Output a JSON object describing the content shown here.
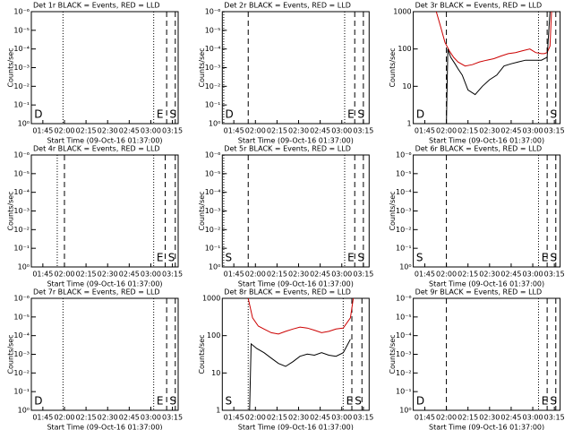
{
  "chart_data": [
    {
      "type": "line",
      "title": "Det 1r BLACK = Events, RED = LLD",
      "xlabel": "Start Time (09-Oct-16 01:37:00)",
      "ylabel": "Counts/sec",
      "ylog": true,
      "xlim": [
        97,
        199
      ],
      "ylim": [
        1,
        1e-06
      ],
      "xticks": [
        {
          "value": 105,
          "label": "01:45"
        },
        {
          "value": 120,
          "label": "02:00"
        },
        {
          "value": 135,
          "label": "02:15"
        },
        {
          "value": 150,
          "label": "02:30"
        },
        {
          "value": 165,
          "label": "02:45"
        },
        {
          "value": 180,
          "label": "03:00"
        },
        {
          "value": 195,
          "label": "03:15"
        }
      ],
      "yticks": [
        {
          "value": 1,
          "label": "10⁰"
        },
        {
          "value": 0.1,
          "label": "10⁻¹"
        },
        {
          "value": 0.01,
          "label": "10⁻²"
        },
        {
          "value": 0.001,
          "label": "10⁻³"
        },
        {
          "value": 0.0001,
          "label": "10⁻⁴"
        },
        {
          "value": 1e-05,
          "label": "10⁻⁵"
        },
        {
          "value": 1e-06,
          "label": "10⁻⁶"
        }
      ],
      "series": [],
      "vlines": [
        {
          "x": 119,
          "style": "dotted"
        },
        {
          "x": 182,
          "style": "dotted"
        },
        {
          "x": 191,
          "style": "dashed"
        },
        {
          "x": 197,
          "style": "dashed"
        }
      ],
      "annotations": [
        {
          "text": "D",
          "x": 99
        },
        {
          "text": "E",
          "x": 184
        },
        {
          "text": "S",
          "x": 193
        }
      ]
    },
    {
      "type": "line",
      "title": "Det 2r BLACK = Events, RED = LLD",
      "xlabel": "Start Time (09-Oct-16 01:37:00)",
      "ylabel": "Counts/sec",
      "ylog": true,
      "xlim": [
        97,
        199
      ],
      "ylim": [
        1,
        1e-06
      ],
      "xticks": [
        {
          "value": 105,
          "label": "01:45"
        },
        {
          "value": 120,
          "label": "02:00"
        },
        {
          "value": 135,
          "label": "02:15"
        },
        {
          "value": 150,
          "label": "02:30"
        },
        {
          "value": 165,
          "label": "02:45"
        },
        {
          "value": 180,
          "label": "03:00"
        },
        {
          "value": 195,
          "label": "03:15"
        }
      ],
      "yticks": [
        {
          "value": 1,
          "label": "10⁰"
        },
        {
          "value": 0.1,
          "label": "10⁻¹"
        },
        {
          "value": 0.01,
          "label": "10⁻²"
        },
        {
          "value": 0.001,
          "label": "10⁻³"
        },
        {
          "value": 0.0001,
          "label": "10⁻⁴"
        },
        {
          "value": 1e-05,
          "label": "10⁻⁵"
        },
        {
          "value": 1e-06,
          "label": "10⁻⁶"
        }
      ],
      "series": [],
      "vlines": [
        {
          "x": 98,
          "style": "dotted"
        },
        {
          "x": 115,
          "style": "dashed"
        },
        {
          "x": 182,
          "style": "dotted"
        },
        {
          "x": 189,
          "style": "dashed"
        },
        {
          "x": 195,
          "style": "dashed"
        }
      ],
      "annotations": [
        {
          "text": "D",
          "x": 99
        },
        {
          "text": "E",
          "x": 184
        },
        {
          "text": "S",
          "x": 191
        }
      ]
    },
    {
      "type": "line",
      "title": "Det 3r BLACK = Events, RED = LLD",
      "xlabel": "Start Time (09-Oct-16 01:37:00)",
      "ylabel": "Counts/sec",
      "ylog": true,
      "xlim": [
        97,
        199
      ],
      "ylim": [
        1,
        1000
      ],
      "xticks": [
        {
          "value": 105,
          "label": "01:45"
        },
        {
          "value": 120,
          "label": "02:00"
        },
        {
          "value": 135,
          "label": "02:15"
        },
        {
          "value": 150,
          "label": "02:30"
        },
        {
          "value": 165,
          "label": "02:45"
        },
        {
          "value": 180,
          "label": "03:00"
        },
        {
          "value": 195,
          "label": "03:15"
        }
      ],
      "yticks": [
        1,
        10,
        100,
        1000
      ],
      "series": [
        {
          "color": "#cc0000",
          "values": [
            1000,
            400,
            150,
            90,
            60,
            45,
            35,
            38,
            45,
            50,
            55,
            65,
            75,
            80,
            90,
            100,
            80,
            75,
            75,
            80,
            120,
            1000
          ],
          "x": [
            113,
            116,
            119,
            122,
            125,
            128,
            133,
            138,
            143,
            148,
            153,
            158,
            163,
            168,
            173,
            178,
            182,
            186,
            188,
            190,
            192,
            193
          ]
        },
        {
          "color": "#000000",
          "values": [
            1,
            100,
            60,
            40,
            30,
            20,
            8,
            6,
            10,
            15,
            20,
            35,
            40,
            45,
            50,
            50,
            50,
            60,
            1000
          ],
          "x": [
            120,
            121,
            123,
            126,
            128,
            131,
            135,
            140,
            145,
            150,
            155,
            160,
            165,
            170,
            175,
            180,
            186,
            190,
            192
          ]
        }
      ],
      "vlines": [
        {
          "x": 120,
          "style": "dashed"
        },
        {
          "x": 184,
          "style": "dotted"
        },
        {
          "x": 190,
          "style": "dashed"
        },
        {
          "x": 196,
          "style": "dashed"
        }
      ],
      "annotations": [
        {
          "text": "D",
          "x": 99
        },
        {
          "text": "S",
          "x": 192
        }
      ]
    },
    {
      "type": "line",
      "title": "Det 4r BLACK = Events, RED = LLD",
      "xlabel": "Start Time (09-Oct-16 01:37:00)",
      "ylabel": "Counts/sec",
      "ylog": true,
      "xlim": [
        97,
        199
      ],
      "ylim": [
        1,
        1e-06
      ],
      "xticks": [
        {
          "value": 105,
          "label": "01:45"
        },
        {
          "value": 120,
          "label": "02:00"
        },
        {
          "value": 135,
          "label": "02:15"
        },
        {
          "value": 150,
          "label": "02:30"
        },
        {
          "value": 165,
          "label": "02:45"
        },
        {
          "value": 180,
          "label": "03:00"
        },
        {
          "value": 195,
          "label": "03:15"
        }
      ],
      "yticks": [
        {
          "value": 1,
          "label": "10⁰"
        },
        {
          "value": 0.1,
          "label": "10⁻¹"
        },
        {
          "value": 0.01,
          "label": "10⁻²"
        },
        {
          "value": 0.001,
          "label": "10⁻³"
        },
        {
          "value": 0.0001,
          "label": "10⁻⁴"
        },
        {
          "value": 1e-05,
          "label": "10⁻⁵"
        },
        {
          "value": 1e-06,
          "label": "10⁻⁶"
        }
      ],
      "series": [],
      "vlines": [
        {
          "x": 115,
          "style": "dotted"
        },
        {
          "x": 120,
          "style": "dashed"
        },
        {
          "x": 182,
          "style": "dotted"
        },
        {
          "x": 190,
          "style": "dashed"
        },
        {
          "x": 197,
          "style": "dashed"
        }
      ],
      "annotations": [
        {
          "text": "E",
          "x": 184
        },
        {
          "text": "S",
          "x": 192
        }
      ]
    },
    {
      "type": "line",
      "title": "Det 5r BLACK = Events, RED = LLD",
      "xlabel": "Start Time (09-Oct-16 01:37:00)",
      "ylabel": "Counts/sec",
      "ylog": true,
      "xlim": [
        97,
        199
      ],
      "ylim": [
        1,
        1e-06
      ],
      "xticks": [
        {
          "value": 105,
          "label": "01:45"
        },
        {
          "value": 120,
          "label": "02:00"
        },
        {
          "value": 135,
          "label": "02:15"
        },
        {
          "value": 150,
          "label": "02:30"
        },
        {
          "value": 165,
          "label": "02:45"
        },
        {
          "value": 180,
          "label": "03:00"
        },
        {
          "value": 195,
          "label": "03:15"
        }
      ],
      "yticks": [
        {
          "value": 1,
          "label": "10⁰"
        },
        {
          "value": 0.1,
          "label": "10⁻¹"
        },
        {
          "value": 0.01,
          "label": "10⁻²"
        },
        {
          "value": 0.001,
          "label": "10⁻³"
        },
        {
          "value": 0.0001,
          "label": "10⁻⁴"
        },
        {
          "value": 1e-05,
          "label": "10⁻⁵"
        },
        {
          "value": 1e-06,
          "label": "10⁻⁶"
        }
      ],
      "series": [],
      "vlines": [
        {
          "x": 98,
          "style": "dotted"
        },
        {
          "x": 115,
          "style": "dashed"
        },
        {
          "x": 182,
          "style": "dotted"
        },
        {
          "x": 189,
          "style": "dashed"
        },
        {
          "x": 195,
          "style": "dashed"
        }
      ],
      "annotations": [
        {
          "text": "S",
          "x": 99
        },
        {
          "text": "E",
          "x": 184
        },
        {
          "text": "S",
          "x": 191
        }
      ]
    },
    {
      "type": "line",
      "title": "Det 6r BLACK = Events, RED = LLD",
      "xlabel": "Start Time (09-Oct-16 01:37:00)",
      "ylabel": "Counts/sec",
      "ylog": true,
      "xlim": [
        97,
        199
      ],
      "ylim": [
        1,
        1e-06
      ],
      "xticks": [
        {
          "value": 105,
          "label": "01:45"
        },
        {
          "value": 120,
          "label": "02:00"
        },
        {
          "value": 135,
          "label": "02:15"
        },
        {
          "value": 150,
          "label": "02:30"
        },
        {
          "value": 165,
          "label": "02:45"
        },
        {
          "value": 180,
          "label": "03:00"
        },
        {
          "value": 195,
          "label": "03:15"
        }
      ],
      "yticks": [
        {
          "value": 1,
          "label": "10⁰"
        },
        {
          "value": 0.1,
          "label": "10⁻¹"
        },
        {
          "value": 0.01,
          "label": "10⁻²"
        },
        {
          "value": 0.001,
          "label": "10⁻³"
        },
        {
          "value": 0.0001,
          "label": "10⁻⁴"
        },
        {
          "value": 1e-05,
          "label": "10⁻⁵"
        },
        {
          "value": 1e-06,
          "label": "10⁻⁶"
        }
      ],
      "series": [],
      "vlines": [
        {
          "x": 120,
          "style": "dashed"
        },
        {
          "x": 184,
          "style": "dotted"
        },
        {
          "x": 190,
          "style": "dashed"
        },
        {
          "x": 196,
          "style": "dashed"
        }
      ],
      "annotations": [
        {
          "text": "S",
          "x": 99
        },
        {
          "text": "E",
          "x": 186
        },
        {
          "text": "S",
          "x": 192
        }
      ]
    },
    {
      "type": "line",
      "title": "Det 7r BLACK = Events, RED = LLD",
      "xlabel": "Start Time (09-Oct-16 01:37:00)",
      "ylabel": "Counts/sec",
      "ylog": true,
      "xlim": [
        97,
        199
      ],
      "ylim": [
        1,
        1e-06
      ],
      "xticks": [
        {
          "value": 105,
          "label": "01:45"
        },
        {
          "value": 120,
          "label": "02:00"
        },
        {
          "value": 135,
          "label": "02:15"
        },
        {
          "value": 150,
          "label": "02:30"
        },
        {
          "value": 165,
          "label": "02:45"
        },
        {
          "value": 180,
          "label": "03:00"
        },
        {
          "value": 195,
          "label": "03:15"
        }
      ],
      "yticks": [
        {
          "value": 1,
          "label": "10⁰"
        },
        {
          "value": 0.1,
          "label": "10⁻¹"
        },
        {
          "value": 0.01,
          "label": "10⁻²"
        },
        {
          "value": 0.001,
          "label": "10⁻³"
        },
        {
          "value": 0.0001,
          "label": "10⁻⁴"
        },
        {
          "value": 1e-05,
          "label": "10⁻⁵"
        },
        {
          "value": 1e-06,
          "label": "10⁻⁶"
        }
      ],
      "series": [],
      "vlines": [
        {
          "x": 119,
          "style": "dotted"
        },
        {
          "x": 182,
          "style": "dotted"
        },
        {
          "x": 191,
          "style": "dashed"
        },
        {
          "x": 197,
          "style": "dashed"
        }
      ],
      "annotations": [
        {
          "text": "D",
          "x": 99
        },
        {
          "text": "E",
          "x": 184
        },
        {
          "text": "S",
          "x": 193
        }
      ]
    },
    {
      "type": "line",
      "title": "Det 8r BLACK = Events, RED = LLD",
      "xlabel": "Start Time (09-Oct-16 01:37:00)",
      "ylabel": "Counts/sec",
      "ylog": true,
      "xlim": [
        97,
        199
      ],
      "ylim": [
        1,
        1000
      ],
      "xticks": [
        {
          "value": 105,
          "label": "01:45"
        },
        {
          "value": 120,
          "label": "02:00"
        },
        {
          "value": 135,
          "label": "02:15"
        },
        {
          "value": 150,
          "label": "02:30"
        },
        {
          "value": 165,
          "label": "02:45"
        },
        {
          "value": 180,
          "label": "03:00"
        },
        {
          "value": 195,
          "label": "03:15"
        }
      ],
      "yticks": [
        1,
        10,
        100,
        1000
      ],
      "series": [
        {
          "color": "#cc0000",
          "values": [
            1000,
            300,
            180,
            150,
            120,
            110,
            130,
            150,
            170,
            160,
            140,
            120,
            130,
            150,
            160,
            300,
            1000
          ],
          "x": [
            115,
            118,
            122,
            126,
            131,
            136,
            141,
            146,
            151,
            156,
            161,
            166,
            171,
            176,
            181,
            186,
            188
          ]
        },
        {
          "color": "#000000",
          "values": [
            1,
            60,
            45,
            35,
            25,
            18,
            15,
            20,
            28,
            32,
            30,
            35,
            30,
            28,
            35,
            80
          ],
          "x": [
            116,
            117,
            121,
            126,
            131,
            136,
            141,
            146,
            151,
            156,
            161,
            166,
            171,
            176,
            181,
            186
          ]
        }
      ],
      "vlines": [
        {
          "x": 115,
          "style": "dotted"
        },
        {
          "x": 181,
          "style": "dotted"
        },
        {
          "x": 187,
          "style": "dashed"
        },
        {
          "x": 194,
          "style": "dashed"
        }
      ],
      "annotations": [
        {
          "text": "S",
          "x": 99
        },
        {
          "text": "E",
          "x": 183
        },
        {
          "text": "S",
          "x": 189
        }
      ]
    },
    {
      "type": "line",
      "title": "Det 9r BLACK = Events, RED = LLD",
      "xlabel": "Start Time (09-Oct-16 01:37:00)",
      "ylabel": "Counts/sec",
      "ylog": true,
      "xlim": [
        97,
        199
      ],
      "ylim": [
        1,
        1e-06
      ],
      "xticks": [
        {
          "value": 105,
          "label": "01:45"
        },
        {
          "value": 120,
          "label": "02:00"
        },
        {
          "value": 135,
          "label": "02:15"
        },
        {
          "value": 150,
          "label": "02:30"
        },
        {
          "value": 165,
          "label": "02:45"
        },
        {
          "value": 180,
          "label": "03:00"
        },
        {
          "value": 195,
          "label": "03:15"
        }
      ],
      "yticks": [
        {
          "value": 1,
          "label": "10⁰"
        },
        {
          "value": 0.1,
          "label": "10⁻¹"
        },
        {
          "value": 0.01,
          "label": "10⁻²"
        },
        {
          "value": 0.001,
          "label": "10⁻³"
        },
        {
          "value": 0.0001,
          "label": "10⁻⁴"
        },
        {
          "value": 1e-05,
          "label": "10⁻⁵"
        },
        {
          "value": 1e-06,
          "label": "10⁻⁶"
        }
      ],
      "series": [],
      "vlines": [
        {
          "x": 120,
          "style": "dashed"
        },
        {
          "x": 184,
          "style": "dotted"
        },
        {
          "x": 190,
          "style": "dashed"
        },
        {
          "x": 196,
          "style": "dashed"
        }
      ],
      "annotations": [
        {
          "text": "D",
          "x": 99
        },
        {
          "text": "E",
          "x": 186
        },
        {
          "text": "S",
          "x": 192
        }
      ]
    }
  ]
}
